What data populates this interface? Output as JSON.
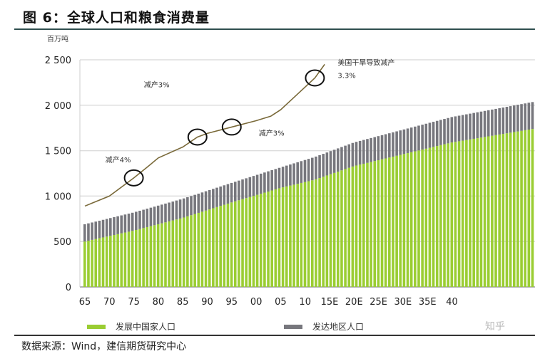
{
  "title": "图 6：全球人口和粮食消费量",
  "unit": "百万吨",
  "source": "数据来源：Wind，建信期货研究中心",
  "watermark": "知乎",
  "chart_data": {
    "type": "bar",
    "stacked": true,
    "ylim": [
      0,
      2500
    ],
    "yticks": [
      "0",
      "500",
      "1 000",
      "1 500",
      "2 000",
      "2 500"
    ],
    "ytick_values": [
      0,
      500,
      1000,
      1500,
      2000,
      2500
    ],
    "xticks": [
      "65",
      "70",
      "75",
      "80",
      "85",
      "90",
      "95",
      "00",
      "05",
      "10",
      "15E",
      "20E",
      "25E",
      "30E",
      "35E",
      "40"
    ],
    "grid": true,
    "legend_placement": "bottom",
    "colors": {
      "developing": "#9acd32",
      "developed": "#77777d",
      "line": "#7a6a3a"
    },
    "series": [
      {
        "name": "发展中国家人口",
        "anchors": {
          "1965": 500,
          "1975": 620,
          "1985": 760,
          "1995": 930,
          "2005": 1090,
          "2012": 1180,
          "2020": 1330,
          "2030": 1460,
          "2040": 1590
        }
      },
      {
        "name": "发达地区人口",
        "anchors": {
          "1965": 190,
          "1975": 200,
          "1985": 210,
          "1995": 215,
          "2005": 225,
          "2012": 250,
          "2020": 260,
          "2030": 270,
          "2040": 280
        }
      }
    ],
    "line_series": {
      "x": [
        1965,
        1970,
        1975,
        1978,
        1980,
        1985,
        1988,
        1990,
        1995,
        2000,
        2003,
        2005,
        2008,
        2012,
        2014
      ],
      "y": [
        890,
        1000,
        1200,
        1330,
        1420,
        1540,
        1650,
        1690,
        1760,
        1830,
        1880,
        1950,
        2100,
        2300,
        2450
      ]
    },
    "annotations": [
      {
        "text": "减产4%",
        "year": 1975
      },
      {
        "text": "减产3%",
        "year": 1988
      },
      {
        "text": "减产3%",
        "year": 1995
      },
      {
        "text": "美国干旱导致减产",
        "text2": "3.3%",
        "year": 2012
      }
    ]
  }
}
